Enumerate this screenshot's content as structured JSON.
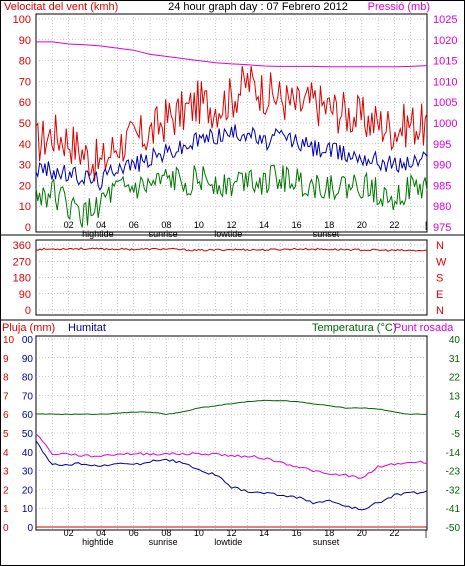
{
  "panels": {
    "top": {
      "left_title": "Velocitat del vent (kmh)",
      "center_title": "24 hour graph day : 07 Febrero 2012",
      "right_title": "Pressió (mb)",
      "left_ticks": [
        "100",
        "90",
        "80",
        "70",
        "60",
        "50",
        "40",
        "30",
        "20",
        "10",
        "0"
      ],
      "right_ticks": [
        "1025",
        "1020",
        "1015",
        "1010",
        "1005",
        "1000",
        "995",
        "990",
        "985",
        "980",
        "975"
      ]
    },
    "mid": {
      "left_ticks": [
        "360",
        "270",
        "180",
        "90",
        "0"
      ],
      "right_ticks": [
        "N",
        "W",
        "S",
        "E",
        "N"
      ]
    },
    "bottom": {
      "left_title": "Pluja (mm)",
      "hum_title": "Humitat",
      "temp_title": "Temperatura (°C)",
      "dew_title": "Punt rosada",
      "left_ticks_rain": [
        "10",
        "9",
        "8",
        "7",
        "6",
        "5",
        "4",
        "3",
        "2",
        "1",
        "0"
      ],
      "left_ticks_hum": [
        "00",
        "90",
        "80",
        "70",
        "60",
        "50",
        "40",
        "30",
        "20",
        "10",
        "0"
      ],
      "right_ticks": [
        "40",
        "31",
        "22",
        "13",
        "4",
        "-5",
        "-14",
        "-23",
        "-32",
        "-41",
        "-50"
      ]
    },
    "xaxis": {
      "hours": [
        "02",
        "04",
        "06",
        "08",
        "10",
        "12",
        "14",
        "16",
        "18",
        "20",
        "22"
      ],
      "events": [
        "hightide",
        "sunrise",
        "lowtide",
        "sunset"
      ]
    }
  },
  "colors": {
    "wind": "#dd0000",
    "gust_avg": "#0000aa",
    "wind_low": "#007700",
    "pressure": "#dd00dd",
    "direction": "#cc0000",
    "temp": "#006600",
    "dew": "#dd00dd",
    "hum": "#000099",
    "rain": "#cc0000"
  },
  "chart_data": [
    {
      "type": "line",
      "title": "24 hour graph day : 07 Febrero 2012",
      "ylabel": "Velocitat del vent (kmh)",
      "y2label": "Pressió (mb)",
      "ylim": [
        0,
        100
      ],
      "y2lim": [
        975,
        1025
      ],
      "x": [
        0,
        1,
        2,
        3,
        4,
        5,
        6,
        7,
        8,
        9,
        10,
        11,
        12,
        13,
        14,
        15,
        16,
        17,
        18,
        19,
        20,
        21,
        22,
        23,
        24
      ],
      "series": [
        {
          "name": "wind",
          "axis": "y",
          "values": [
            40,
            45,
            42,
            35,
            30,
            40,
            42,
            45,
            52,
            55,
            60,
            58,
            62,
            70,
            65,
            62,
            58,
            60,
            57,
            55,
            52,
            50,
            47,
            50,
            48
          ]
        },
        {
          "name": "avg",
          "axis": "y",
          "values": [
            28,
            27,
            25,
            24,
            22,
            30,
            30,
            33,
            36,
            38,
            42,
            44,
            45,
            46,
            40,
            44,
            41,
            38,
            37,
            35,
            34,
            32,
            30,
            31,
            33
          ]
        },
        {
          "name": "low",
          "axis": "y",
          "values": [
            15,
            17,
            10,
            5,
            12,
            17,
            18,
            19,
            22,
            22,
            23,
            22,
            20,
            25,
            22,
            24,
            22,
            20,
            20,
            19,
            20,
            17,
            15,
            18,
            19
          ]
        },
        {
          "name": "pressure",
          "axis": "y2",
          "values": [
            1019.5,
            1019.5,
            1019,
            1018.8,
            1018.5,
            1018,
            1017.5,
            1016.5,
            1016,
            1015.5,
            1015,
            1014.5,
            1014.2,
            1014,
            1013.7,
            1013.6,
            1013.6,
            1013.6,
            1013.5,
            1013.5,
            1013.5,
            1013.5,
            1013.5,
            1013.6,
            1013.8
          ]
        }
      ]
    },
    {
      "type": "line",
      "ylabel": "",
      "ylim": [
        0,
        360
      ],
      "x": [
        0,
        2,
        4,
        6,
        8,
        10,
        12,
        14,
        16,
        18,
        20,
        22,
        24
      ],
      "series": [
        {
          "name": "direction",
          "values": [
            335,
            340,
            338,
            336,
            338,
            330,
            335,
            333,
            338,
            336,
            333,
            330,
            328
          ]
        }
      ]
    },
    {
      "type": "line",
      "ylabel": "Pluja (mm)",
      "y2label": "Temperatura (°C)",
      "ylim": [
        0,
        100
      ],
      "y2lim": [
        -50,
        40
      ],
      "x": [
        0,
        1,
        2,
        3,
        4,
        5,
        6,
        7,
        8,
        9,
        10,
        11,
        12,
        13,
        14,
        15,
        16,
        17,
        18,
        19,
        20,
        21,
        22,
        23,
        24
      ],
      "series": [
        {
          "name": "temp",
          "axis": "y2",
          "values": [
            4,
            4,
            4,
            4,
            4,
            4.5,
            5,
            5,
            4,
            5,
            7,
            8,
            9,
            10,
            10.5,
            10.5,
            10,
            9,
            8,
            7,
            7,
            6.5,
            5,
            4,
            4
          ]
        },
        {
          "name": "dew",
          "axis": "y2",
          "values": [
            -5,
            -15,
            -15,
            -16,
            -16,
            -15,
            -15,
            -15,
            -15,
            -15,
            -15,
            -15,
            -16,
            -16,
            -17,
            -19,
            -21,
            -23,
            -25,
            -25,
            -27,
            -21,
            -20,
            -19,
            -19
          ]
        },
        {
          "name": "hum",
          "axis": "y",
          "values": [
            46,
            33,
            33,
            34,
            32,
            34,
            33,
            35,
            36,
            34,
            30,
            28,
            21,
            19,
            18,
            17,
            16,
            13,
            14,
            11,
            9,
            13,
            17,
            18,
            19
          ]
        },
        {
          "name": "rain",
          "axis": "y",
          "values": [
            0,
            0,
            0,
            0,
            0,
            0,
            0,
            0,
            0,
            0,
            0,
            0,
            0,
            0,
            0,
            0,
            0,
            0,
            0,
            0,
            0,
            0,
            0,
            0,
            0
          ]
        }
      ]
    }
  ]
}
